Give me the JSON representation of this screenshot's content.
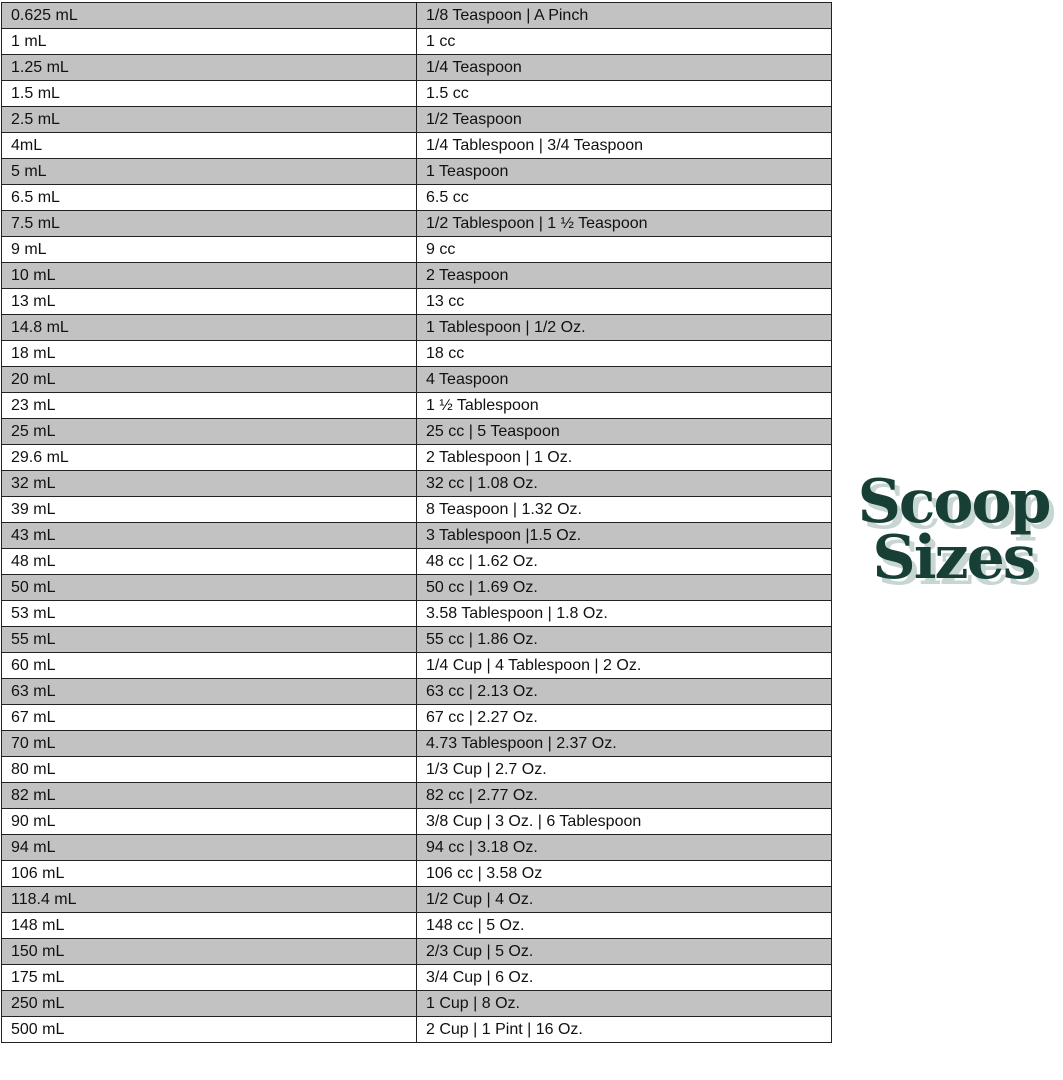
{
  "logo": {
    "line1": "Scoop",
    "line2": "Sizes",
    "color": "#173f35",
    "shadow_color": "#c7d6d2"
  },
  "table": {
    "rows": [
      [
        "0.625 mL",
        "1/8 Teaspoon | A Pinch"
      ],
      [
        "1 mL",
        "1 cc"
      ],
      [
        "1.25 mL",
        "1/4 Teaspoon"
      ],
      [
        "1.5 mL",
        "1.5 cc"
      ],
      [
        "2.5 mL",
        "1/2 Teaspoon"
      ],
      [
        "4mL",
        "1/4 Tablespoon | 3/4 Teaspoon"
      ],
      [
        "5 mL",
        "1 Teaspoon"
      ],
      [
        "6.5 mL",
        "6.5 cc"
      ],
      [
        "7.5 mL",
        "1/2 Tablespoon | 1 ½ Teaspoon"
      ],
      [
        "9 mL",
        "9 cc"
      ],
      [
        "10 mL",
        "2 Teaspoon"
      ],
      [
        "13 mL",
        "13 cc"
      ],
      [
        "14.8 mL",
        "1 Tablespoon | 1/2 Oz."
      ],
      [
        "18 mL",
        "18 cc"
      ],
      [
        "20 mL",
        "4 Teaspoon"
      ],
      [
        "23 mL",
        "1 ½ Tablespoon"
      ],
      [
        "25 mL",
        "25 cc | 5 Teaspoon"
      ],
      [
        "29.6 mL",
        "2 Tablespoon | 1 Oz."
      ],
      [
        "32 mL",
        "32 cc | 1.08 Oz."
      ],
      [
        "39 mL",
        "8 Teaspoon | 1.32 Oz."
      ],
      [
        "43 mL",
        "3 Tablespoon |1.5 Oz."
      ],
      [
        "48 mL",
        "48 cc | 1.62 Oz."
      ],
      [
        "50 mL",
        "50 cc | 1.69 Oz."
      ],
      [
        "53 mL",
        "3.58 Tablespoon | 1.8 Oz."
      ],
      [
        "55 mL",
        "55 cc | 1.86 Oz."
      ],
      [
        "60 mL",
        "1/4 Cup | 4 Tablespoon | 2 Oz."
      ],
      [
        "63 mL",
        "63 cc | 2.13 Oz."
      ],
      [
        "67 mL",
        "67 cc | 2.27 Oz."
      ],
      [
        "70 mL",
        "4.73 Tablespoon | 2.37 Oz."
      ],
      [
        "80 mL",
        "1/3 Cup | 2.7 Oz."
      ],
      [
        "82 mL",
        "82 cc | 2.77 Oz."
      ],
      [
        "90 mL",
        "3/8 Cup | 3 Oz. | 6 Tablespoon"
      ],
      [
        "94 mL",
        "94 cc | 3.18 Oz."
      ],
      [
        "106 mL",
        "106 cc | 3.58 Oz"
      ],
      [
        "118.4 mL",
        "1/2 Cup | 4 Oz."
      ],
      [
        "148 mL",
        "148 cc | 5 Oz."
      ],
      [
        "150 mL",
        "2/3 Cup | 5 Oz."
      ],
      [
        "175 mL",
        "3/4 Cup | 6 Oz."
      ],
      [
        "250 mL",
        "1 Cup | 8 Oz."
      ],
      [
        "500 mL",
        "2 Cup | 1 Pint | 16 Oz."
      ]
    ],
    "stripe_color": "#c2c2c2"
  }
}
